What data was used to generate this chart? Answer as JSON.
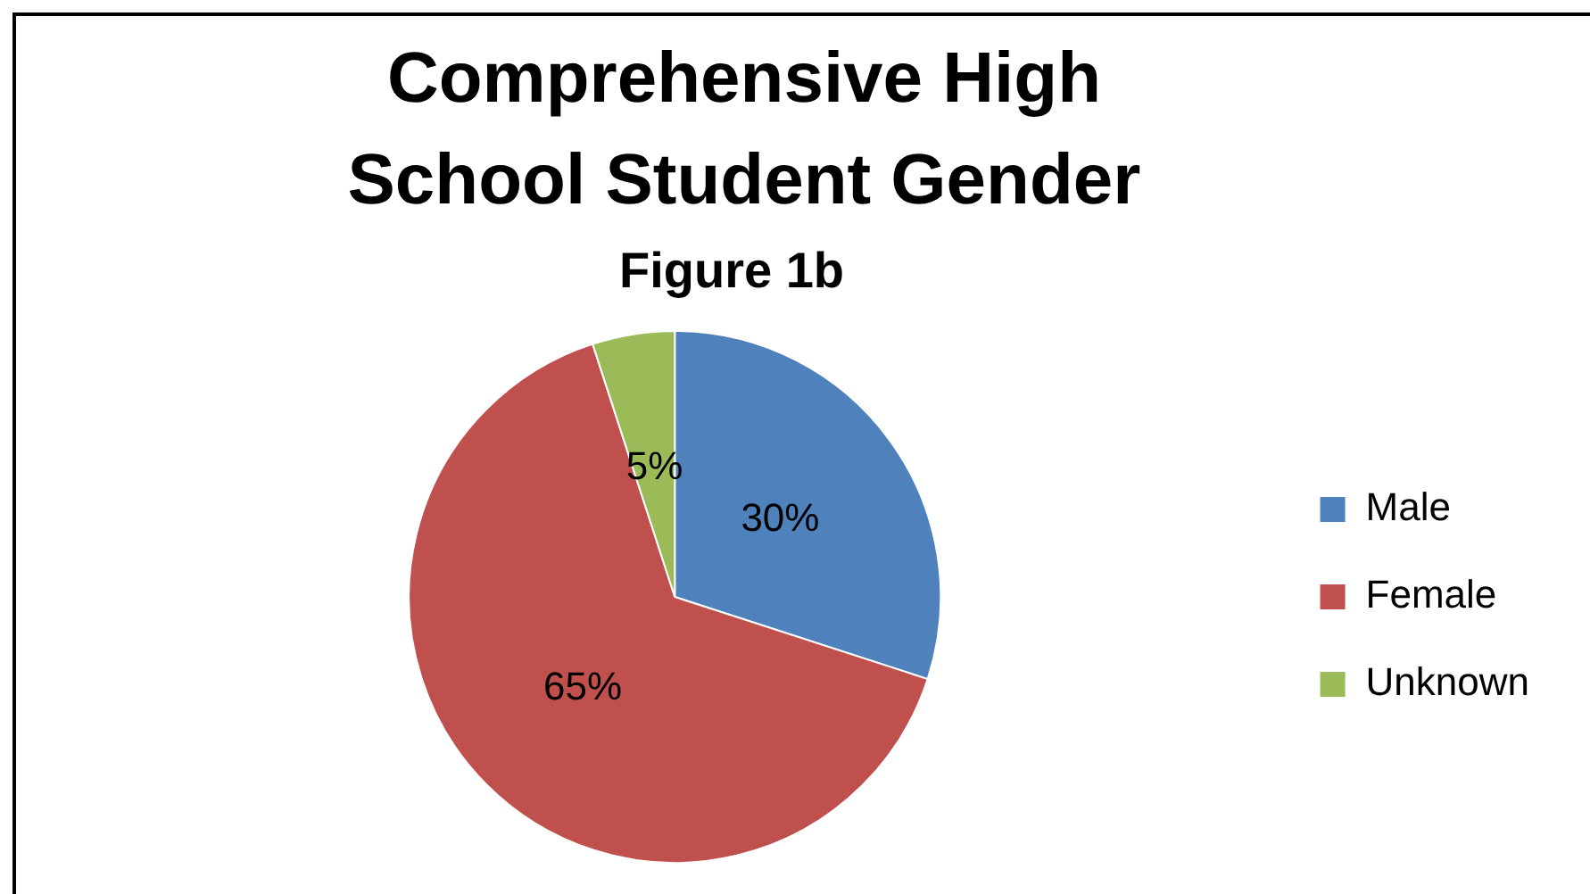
{
  "chart_data": {
    "type": "pie",
    "title": "Comprehensive High School Student Gender",
    "subtitle": "Figure 1b",
    "categories": [
      "Male",
      "Female",
      "Unknown"
    ],
    "values": [
      30,
      65,
      5
    ],
    "colors": [
      "#4f81bd",
      "#c0504d",
      "#9bbb59"
    ],
    "value_labels": [
      "30%",
      "65%",
      "5%"
    ],
    "legend": "right"
  }
}
